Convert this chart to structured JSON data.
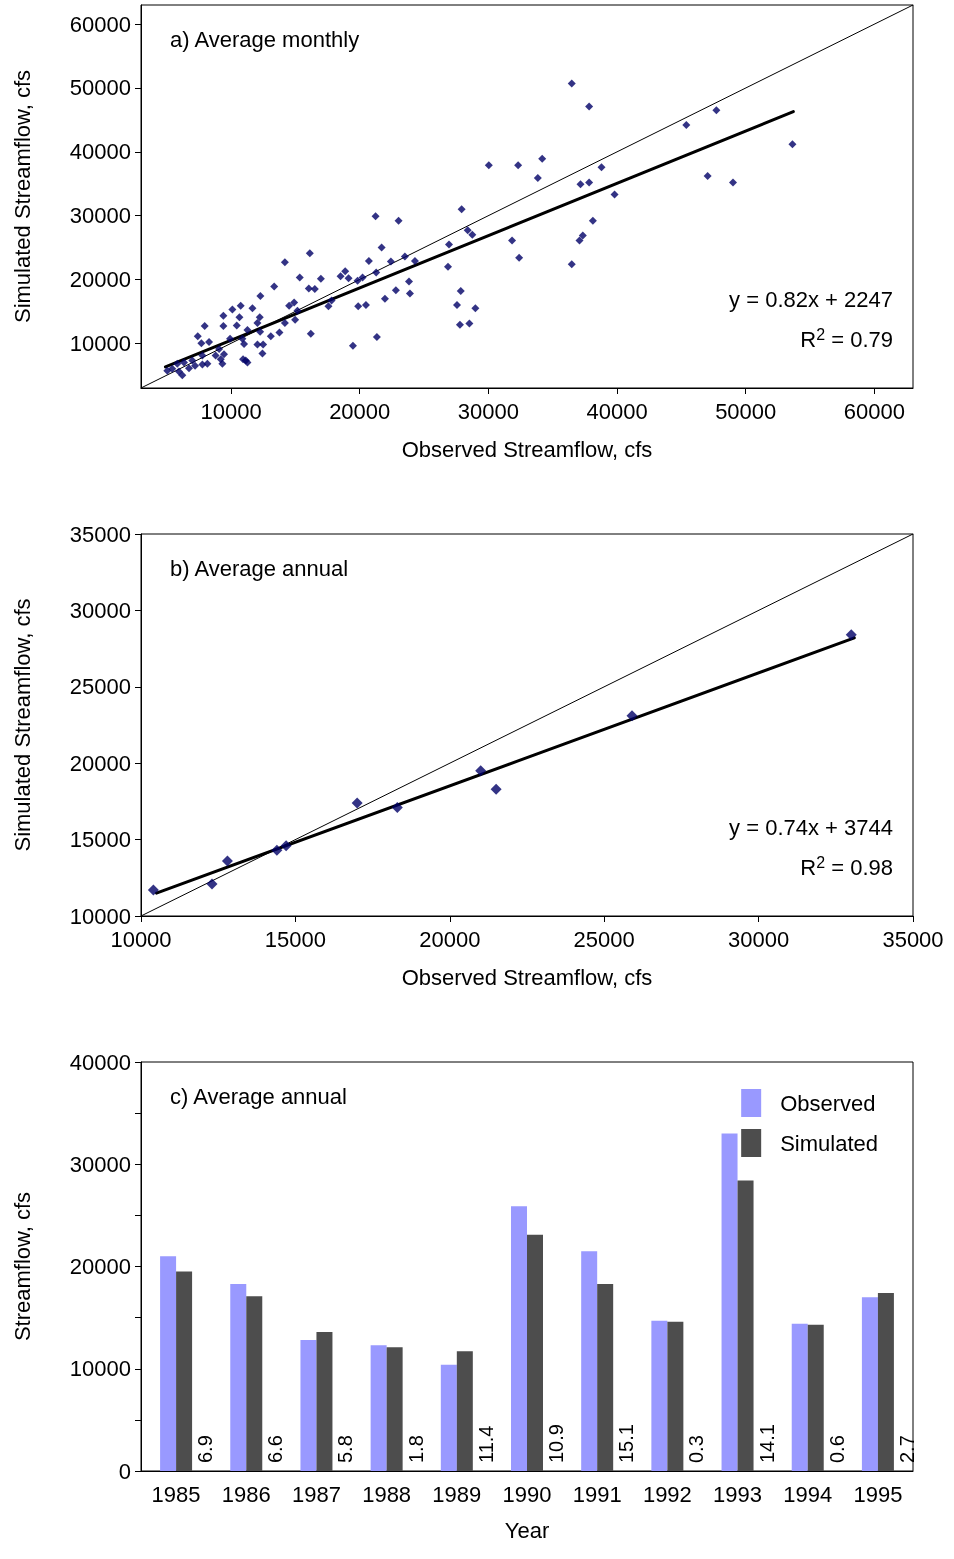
{
  "chart_data": [
    {
      "type": "scatter",
      "title": "a) Average monthly",
      "xlabel": "Observed Streamflow, cfs",
      "ylabel": "Simulated Streamflow, cfs",
      "annotations": [
        "y = 0.82x + 2247",
        "R$^{2}$ = 0.79"
      ],
      "xlim": [
        3000,
        63000
      ],
      "ylim": [
        3000,
        63000
      ],
      "xticks": [
        10000,
        20000,
        30000,
        40000,
        50000,
        60000
      ],
      "yticks": [
        10000,
        20000,
        30000,
        40000,
        50000,
        60000
      ],
      "marker": "diamond",
      "grid": false,
      "series": [
        {
          "color": "#000066",
          "x": [
            30030,
            27920,
            28390,
            28750,
            26940,
            26860,
            27850,
            27560,
            28990,
            27790,
            28520,
            21230,
            23020,
            21700,
            23510,
            22420,
            20710,
            24290,
            21280,
            23830,
            23900,
            22810,
            21960,
            19880,
            20480,
            21330,
            19470,
            19830,
            20220,
            19130,
            18510,
            18870,
            16980,
            17810,
            17570,
            16120,
            14180,
            16040,
            16510,
            15340,
            13350,
            12280,
            11660,
            10100,
            9400,
            10750,
            10650,
            9400,
            10440,
            7950,
            7410,
            8290,
            7690,
            9920,
            10880,
            11270,
            12050,
            12230,
            12260,
            13090,
            13760,
            14180,
            14510,
            14900,
            15160,
            14980,
            16200,
            12050,
            12490,
            12440,
            11010,
            10930,
            11140,
            11270,
            9070,
            9450,
            9200,
            9325,
            8160,
            7770,
            7200,
            6730,
            6210,
            5950,
            5430,
            5045,
            6340,
            6990,
            7770,
            8800,
            5820,
            36480,
            37830,
            47720,
            45380,
            53630,
            34180,
            32310,
            33840,
            38790,
            37160,
            37830,
            39805,
            47040,
            49010,
            31840,
            32390,
            38120,
            37340,
            37080,
            36480
          ],
          "values": [
            37900,
            31000,
            27700,
            27000,
            25500,
            22000,
            18200,
            16000,
            15500,
            12900,
            13100,
            29900,
            29200,
            25000,
            23600,
            22800,
            22900,
            22900,
            21100,
            19700,
            17800,
            18300,
            17000,
            15800,
            16000,
            11000,
            9600,
            19800,
            20300,
            20200,
            20500,
            21300,
            20100,
            16700,
            15800,
            24100,
            22700,
            18600,
            18500,
            20300,
            18900,
            17400,
            15500,
            15300,
            14300,
            15900,
            14100,
            12700,
            12800,
            12700,
            11100,
            10200,
            10000,
            10700,
            10700,
            12100,
            13200,
            14100,
            11800,
            11100,
            11700,
            13200,
            15900,
            16400,
            15100,
            13700,
            11500,
            9800,
            9800,
            8400,
            9900,
            7500,
            7300,
            7000,
            9100,
            8300,
            7500,
            6800,
            6800,
            6700,
            6500,
            6100,
            5000,
            5600,
            6000,
            5700,
            7000,
            7300,
            8100,
            8100,
            6800,
            50700,
            47100,
            46500,
            44200,
            41200,
            38900,
            37900,
            35900,
            37600,
            34900,
            35200,
            33300,
            36200,
            35200,
            26100,
            23400,
            29200,
            26900,
            26100,
            22400
          ]
        },
        {
          "type": "line",
          "color": "#000000",
          "marker": "none",
          "x": [
            3000,
            63000
          ],
          "values": [
            3000,
            63000
          ]
        },
        {
          "type": "line",
          "color": "#000000",
          "marker": "none",
          "x": [
            4900,
            53700
          ],
          "values": [
            6300,
            46300
          ]
        }
      ]
    },
    {
      "type": "scatter",
      "title": "b) Average annual",
      "xlabel": "Observed Streamflow, cfs",
      "ylabel": "Simulated Streamflow, cfs",
      "annotations": [
        "y = 0.74x + 3744",
        "R$^{2}$ = 0.98"
      ],
      "xlim": [
        10000,
        35000
      ],
      "ylim": [
        10000,
        35000
      ],
      "xticks": [
        10000,
        15000,
        20000,
        25000,
        30000,
        35000
      ],
      "yticks": [
        10000,
        15000,
        20000,
        25000,
        30000,
        35000
      ],
      "marker": "diamond",
      "grid": false,
      "series": [
        {
          "color": "#000066",
          "x": [
            21000,
            18300,
            12800,
            12300,
            10400,
            25900,
            21500,
            14700,
            33000,
            14400,
            17000
          ],
          "values": [
            19500,
            17100,
            13600,
            12100,
            11700,
            23100,
            18300,
            14600,
            28400,
            14300,
            17400
          ]
        },
        {
          "type": "line",
          "color": "#000000",
          "marker": "none",
          "x": [
            10000,
            35000
          ],
          "values": [
            10000,
            35000
          ]
        },
        {
          "type": "line",
          "color": "#000000",
          "marker": "none",
          "x": [
            10500,
            33100
          ],
          "values": [
            11500,
            28200
          ]
        }
      ]
    },
    {
      "type": "bar",
      "title": "c) Average annual",
      "xlabel": "Year",
      "ylabel": "Streamflow, cfs",
      "categories": [
        "1985",
        "1986",
        "1987",
        "1988",
        "1989",
        "1990",
        "1991",
        "1992",
        "1993",
        "1994",
        "1995"
      ],
      "ylim": [
        0,
        40000
      ],
      "yticks": [
        0,
        {
          "value": 5000,
          "label": null
        },
        10000,
        {
          "value": 15000,
          "label": null
        },
        20000,
        {
          "value": 25000,
          "label": null
        },
        30000,
        {
          "value": 35000,
          "label": null
        },
        40000
      ],
      "grid": false,
      "legend": "top right",
      "series": [
        {
          "name": "Observed",
          "color": "#9999ff",
          "values": [
            21000,
            18300,
            12800,
            12300,
            10400,
            25900,
            21500,
            14700,
            33000,
            14400,
            17000
          ]
        },
        {
          "name": "Simulated",
          "color": "#4d4d4d",
          "values": [
            19500,
            17100,
            13600,
            12100,
            11700,
            23100,
            18300,
            14600,
            28400,
            14300,
            17400
          ]
        }
      ],
      "annotations": [
        {
          "text": "6.9",
          "x": "1985"
        },
        {
          "text": "6.6",
          "x": "1986"
        },
        {
          "text": "5.8",
          "x": "1987"
        },
        {
          "text": "1.8",
          "x": "1988"
        },
        {
          "text": "11.4",
          "x": "1989"
        },
        {
          "text": "10.9",
          "x": "1990"
        },
        {
          "text": "15.1",
          "x": "1991"
        },
        {
          "text": "0.3",
          "x": "1992"
        },
        {
          "text": "14.1",
          "x": "1993"
        },
        {
          "text": "0.6",
          "x": "1994"
        },
        {
          "text": "2.7",
          "x": "1995"
        }
      ]
    }
  ]
}
